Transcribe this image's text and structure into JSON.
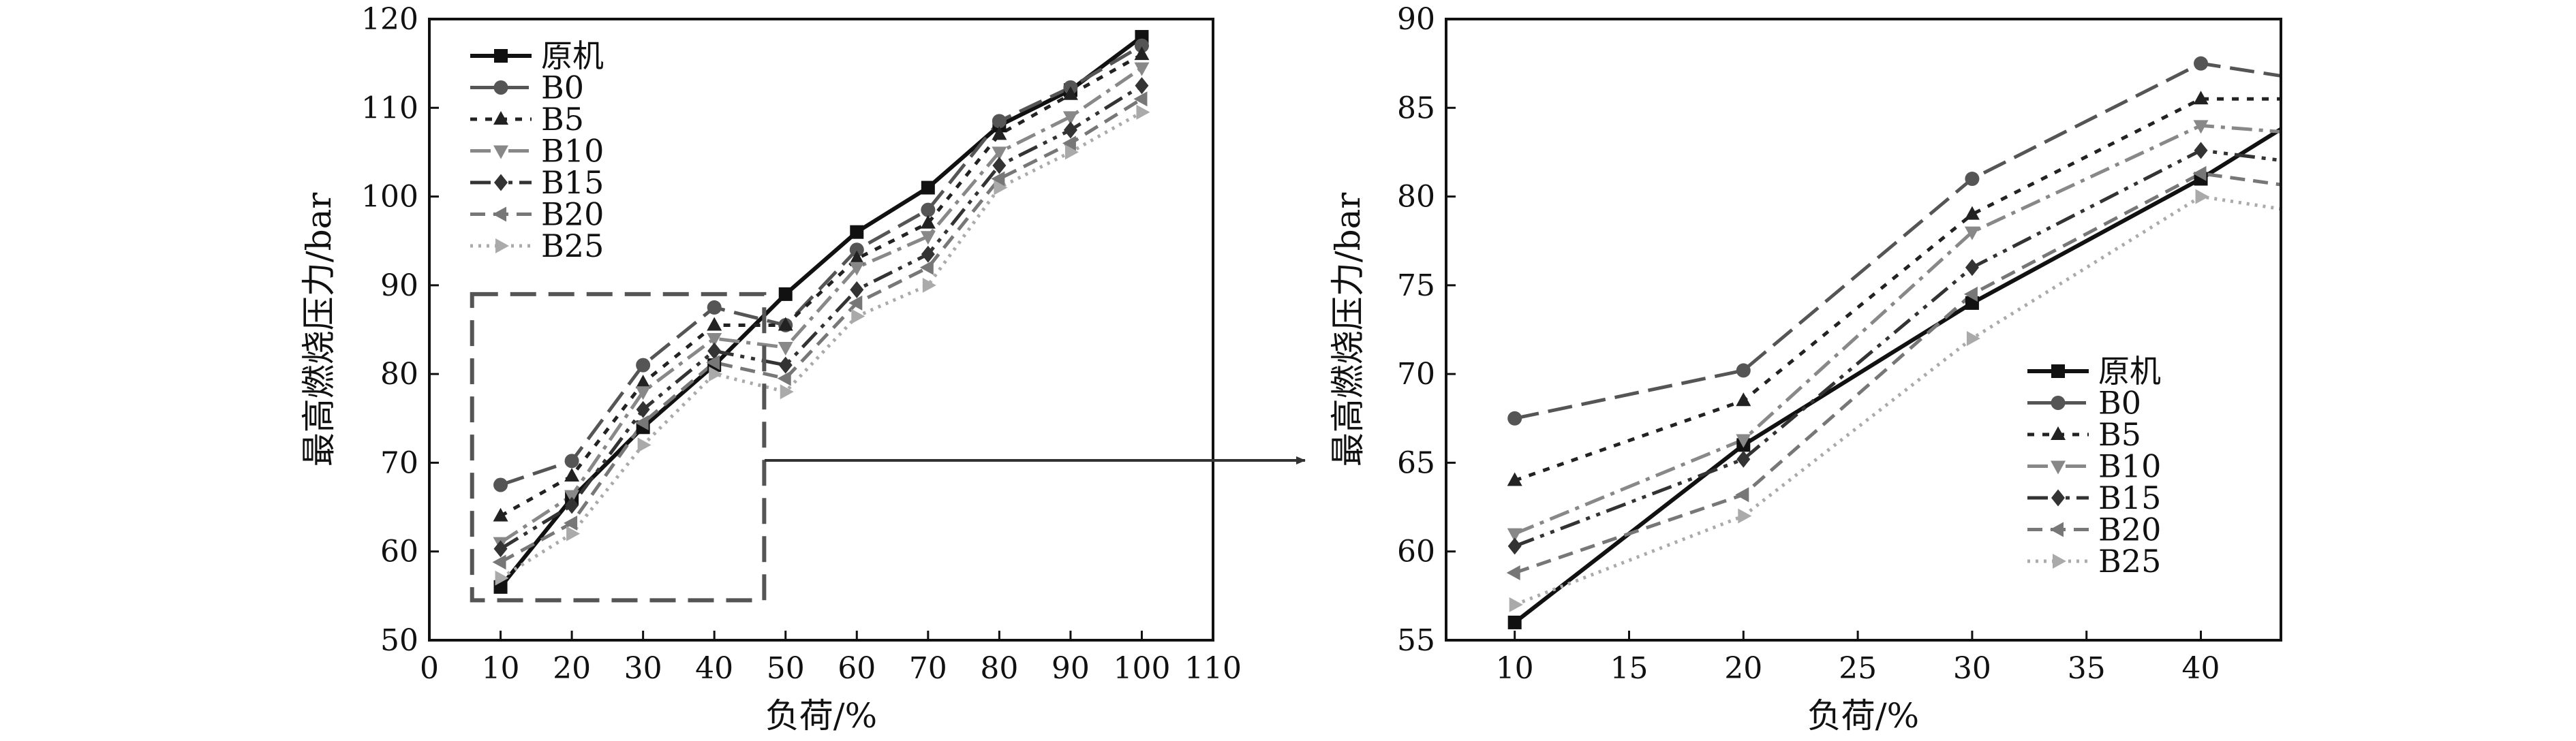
{
  "series_styles": [
    {
      "name": "原机",
      "color": "#111111",
      "dash": "",
      "width": 6,
      "marker": "square"
    },
    {
      "name": "B0",
      "color": "#555555",
      "dash": "36,14",
      "width": 5,
      "marker": "circle"
    },
    {
      "name": "B5",
      "color": "#222222",
      "dash": "10,12",
      "width": 5,
      "marker": "triangle-up"
    },
    {
      "name": "B10",
      "color": "#888888",
      "dash": "30,10,6,10",
      "width": 5,
      "marker": "triangle-down"
    },
    {
      "name": "B15",
      "color": "#333333",
      "dash": "30,10,6,10,6,10",
      "width": 5,
      "marker": "diamond"
    },
    {
      "name": "B20",
      "color": "#777777",
      "dash": "22,12",
      "width": 5,
      "marker": "triangle-left"
    },
    {
      "name": "B25",
      "color": "#aaaaaa",
      "dash": "4,8",
      "width": 5,
      "marker": "triangle-right"
    }
  ],
  "chart_data": [
    {
      "type": "line",
      "panel": "left",
      "xlabel": "负荷/%",
      "ylabel": "最高燃烧压力/bar",
      "xlim": [
        0,
        110
      ],
      "ylim": [
        50,
        120
      ],
      "xticks": [
        0,
        10,
        20,
        30,
        40,
        50,
        60,
        70,
        80,
        90,
        100,
        110
      ],
      "yticks": [
        50,
        60,
        70,
        80,
        90,
        100,
        110,
        120
      ],
      "legend": "top-left",
      "grid": false,
      "zoom_box": {
        "x": [
          6,
          47
        ],
        "y": [
          54.5,
          89
        ]
      },
      "x": [
        10,
        20,
        30,
        40,
        50,
        60,
        70,
        80,
        90,
        100
      ],
      "series": [
        {
          "name": "原机",
          "values": [
            56,
            66,
            74,
            81,
            89,
            96,
            101,
            108,
            112,
            118
          ]
        },
        {
          "name": "B0",
          "values": [
            67.5,
            70.2,
            81,
            87.5,
            85.5,
            94,
            98.5,
            108.5,
            112.3,
            117
          ]
        },
        {
          "name": "B5",
          "values": [
            64,
            68.5,
            79,
            85.5,
            85.5,
            93,
            97,
            107,
            111.5,
            116
          ]
        },
        {
          "name": "B10",
          "values": [
            61,
            66.3,
            78,
            84,
            83,
            92,
            95.5,
            105,
            109,
            114.5
          ]
        },
        {
          "name": "B15",
          "values": [
            60.3,
            65.2,
            76,
            82.6,
            81,
            89.5,
            93.5,
            103.5,
            107.5,
            112.5
          ]
        },
        {
          "name": "B20",
          "values": [
            58.8,
            63.2,
            74.5,
            81.3,
            79.5,
            88,
            92,
            102,
            106,
            111
          ]
        },
        {
          "name": "B25",
          "values": [
            57,
            62,
            72,
            80,
            78,
            86.5,
            90,
            101,
            105,
            109.5
          ]
        }
      ]
    },
    {
      "type": "line",
      "panel": "right",
      "xlabel": "负荷/%",
      "ylabel": "最高燃烧压力/bar",
      "xlim": [
        7,
        43.5
      ],
      "ylim": [
        55,
        90
      ],
      "xticks": [
        10,
        15,
        20,
        25,
        30,
        35,
        40
      ],
      "yticks": [
        55,
        60,
        65,
        70,
        75,
        80,
        85,
        90
      ],
      "legend": "bottom-right",
      "grid": false,
      "x": [
        10,
        20,
        30,
        40,
        50
      ],
      "series": [
        {
          "name": "原机",
          "values": [
            56,
            66,
            74,
            81,
            89
          ]
        },
        {
          "name": "B0",
          "values": [
            67.5,
            70.2,
            81,
            87.5,
            85.5
          ]
        },
        {
          "name": "B5",
          "values": [
            64,
            68.5,
            79,
            85.5,
            85.5
          ]
        },
        {
          "name": "B10",
          "values": [
            61,
            66.3,
            78,
            84,
            83
          ]
        },
        {
          "name": "B15",
          "values": [
            60.3,
            65.2,
            76,
            82.6,
            81
          ]
        },
        {
          "name": "B20",
          "values": [
            58.8,
            63.2,
            74.5,
            81.3,
            79.5
          ]
        },
        {
          "name": "B25",
          "values": [
            57,
            62,
            72,
            80,
            78
          ]
        }
      ]
    }
  ]
}
